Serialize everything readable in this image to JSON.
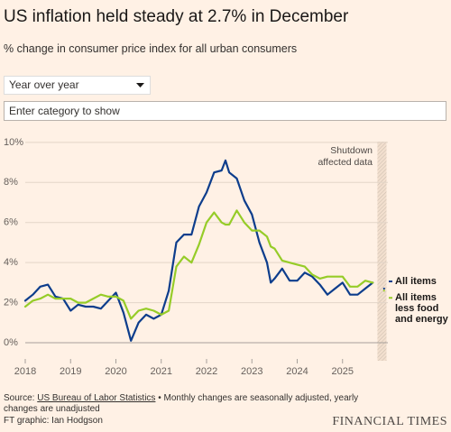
{
  "title": "US inflation held steady at 2.7% in December",
  "subtitle": "% change in consumer price index for all urban consumers",
  "controls": {
    "dropdown": "Year over year",
    "search_placeholder": "Enter category to show"
  },
  "chart_data": {
    "type": "line",
    "x": [
      2018,
      2018.167,
      2018.333,
      2018.5,
      2018.667,
      2018.833,
      2019,
      2019.167,
      2019.333,
      2019.5,
      2019.667,
      2019.833,
      2020,
      2020.167,
      2020.333,
      2020.5,
      2020.667,
      2020.833,
      2021,
      2021.167,
      2021.333,
      2021.5,
      2021.667,
      2021.833,
      2022,
      2022.167,
      2022.333,
      2022.417,
      2022.5,
      2022.667,
      2022.833,
      2023,
      2023.167,
      2023.333,
      2023.417,
      2023.5,
      2023.667,
      2023.833,
      2024,
      2024.167,
      2024.333,
      2024.5,
      2024.667,
      2024.833,
      2025,
      2025.167,
      2025.333,
      2025.5,
      2025.667,
      2025.833,
      2025.917
    ],
    "series": [
      {
        "name": "All items",
        "color": "#0d3d8c",
        "values": [
          2.1,
          2.4,
          2.8,
          2.9,
          2.3,
          2.2,
          1.6,
          1.9,
          1.8,
          1.8,
          1.7,
          2.1,
          2.5,
          1.5,
          0.1,
          1.0,
          1.4,
          1.2,
          1.4,
          2.6,
          5.0,
          5.4,
          5.4,
          6.8,
          7.5,
          8.5,
          8.6,
          9.1,
          8.5,
          8.2,
          7.1,
          6.4,
          5.0,
          4.0,
          3.0,
          3.2,
          3.7,
          3.1,
          3.1,
          3.5,
          3.3,
          2.9,
          2.4,
          2.7,
          3.0,
          2.4,
          2.4,
          2.7,
          3.0,
          null,
          2.7
        ]
      },
      {
        "name": "All items less food and energy",
        "color": "#96cc28",
        "values": [
          1.8,
          2.1,
          2.2,
          2.4,
          2.2,
          2.2,
          2.2,
          2.0,
          2.0,
          2.2,
          2.4,
          2.3,
          2.3,
          2.1,
          1.2,
          1.6,
          1.7,
          1.6,
          1.4,
          1.6,
          3.8,
          4.3,
          4.0,
          4.9,
          6.0,
          6.5,
          6.0,
          5.9,
          5.9,
          6.6,
          6.0,
          5.6,
          5.6,
          5.3,
          4.8,
          4.7,
          4.1,
          4.0,
          3.9,
          3.8,
          3.4,
          3.2,
          3.3,
          3.3,
          3.3,
          2.8,
          2.8,
          3.1,
          3.0,
          null,
          2.6
        ]
      }
    ],
    "xlim": [
      2018,
      2026
    ],
    "xticks": [
      2018,
      2019,
      2020,
      2021,
      2022,
      2023,
      2024,
      2025
    ],
    "ylim": [
      -0.9,
      10.4
    ],
    "yticks": [
      {
        "value": 0,
        "label": "0%"
      },
      {
        "value": 2,
        "label": "2%"
      },
      {
        "value": 4,
        "label": "4%"
      },
      {
        "value": 6,
        "label": "6%"
      },
      {
        "value": 8,
        "label": "8%"
      },
      {
        "value": 10,
        "label": "10%"
      }
    ],
    "grid": true,
    "shaded_region": {
      "x": [
        2025.77,
        2025.97
      ],
      "label": "Shutdown affected data"
    }
  },
  "footer": {
    "source_prefix": "Source:",
    "source_link": "US Bureau of Labor Statistics",
    "source_note": "• Monthly changes are seasonally adjusted, yearly changes are unadjusted",
    "credit": "FT graphic: Ian Hodgson",
    "logo": "FINANCIAL TIMES"
  }
}
